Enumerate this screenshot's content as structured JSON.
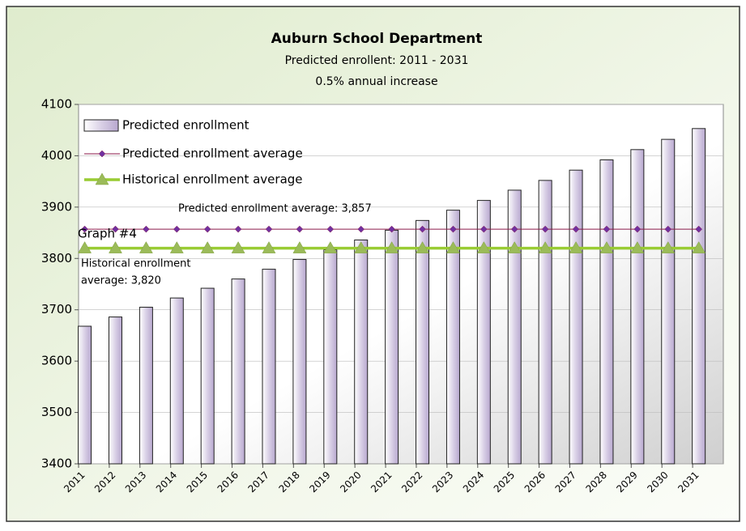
{
  "chart_data": {
    "type": "bar",
    "title": "Auburn School Department",
    "subtitle": "Predicted  enrollent: 2011 - 2031",
    "subtitle2": "0.5% annual increase",
    "label": "Graph #4",
    "categories": [
      "2011",
      "2012",
      "2013",
      "2014",
      "2015",
      "2016",
      "2017",
      "2018",
      "2019",
      "2020",
      "2021",
      "2022",
      "2023",
      "2024",
      "2025",
      "2026",
      "2027",
      "2028",
      "2029",
      "2030",
      "2031"
    ],
    "series": [
      {
        "name": "Predicted enrollment",
        "type": "bar",
        "color": "#d9d0e6",
        "values": [
          3668,
          3686,
          3705,
          3723,
          3742,
          3760,
          3779,
          3798,
          3817,
          3836,
          3855,
          3874,
          3894,
          3913,
          3933,
          3952,
          3972,
          3992,
          4012,
          4032,
          4053
        ]
      },
      {
        "name": "Predicted enrollment average",
        "type": "line",
        "marker": "diamond",
        "color": "#8b1a4a",
        "marker_color": "#7030a0",
        "values": [
          3857,
          3857,
          3857,
          3857,
          3857,
          3857,
          3857,
          3857,
          3857,
          3857,
          3857,
          3857,
          3857,
          3857,
          3857,
          3857,
          3857,
          3857,
          3857,
          3857,
          3857
        ]
      },
      {
        "name": "Historical enrollment average",
        "type": "line",
        "marker": "triangle",
        "color": "#99cc33",
        "marker_color": "#9bbb59",
        "values": [
          3820,
          3820,
          3820,
          3820,
          3820,
          3820,
          3820,
          3820,
          3820,
          3820,
          3820,
          3820,
          3820,
          3820,
          3820,
          3820,
          3820,
          3820,
          3820,
          3820,
          3820
        ]
      }
    ],
    "annotations": [
      {
        "lines": [
          "Predicted enrollment average: 3,857"
        ]
      },
      {
        "lines": [
          "Historical enrollment",
          "average: 3,820"
        ]
      }
    ],
    "ylim": [
      3400,
      4100
    ],
    "yticks": [
      3400,
      3500,
      3600,
      3700,
      3800,
      3900,
      4000,
      4100
    ],
    "grid": true
  }
}
